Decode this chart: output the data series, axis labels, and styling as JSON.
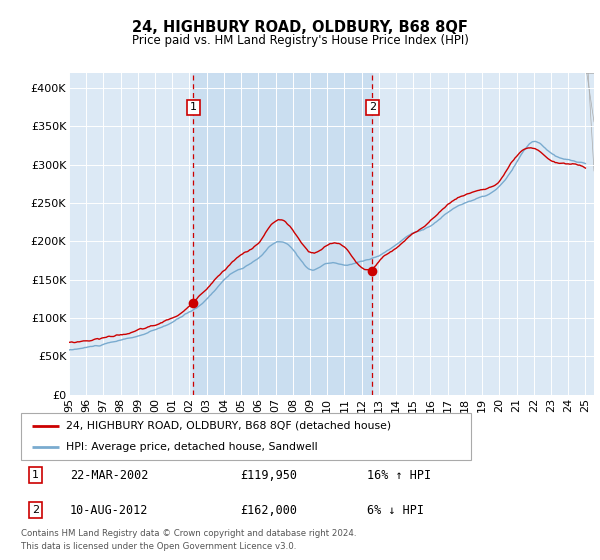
{
  "title": "24, HIGHBURY ROAD, OLDBURY, B68 8QF",
  "subtitle": "Price paid vs. HM Land Registry's House Price Index (HPI)",
  "background_color": "#ffffff",
  "plot_bg_color": "#dce9f5",
  "shade_color": "#c8ddf0",
  "ylim": [
    0,
    420000
  ],
  "yticks": [
    0,
    50000,
    100000,
    150000,
    200000,
    250000,
    300000,
    350000,
    400000
  ],
  "ytick_labels": [
    "£0",
    "£50K",
    "£100K",
    "£150K",
    "£200K",
    "£250K",
    "£300K",
    "£350K",
    "£400K"
  ],
  "sale1_year": 2002.22,
  "sale1_price": 119950,
  "sale2_year": 2012.62,
  "sale2_price": 162000,
  "legend_line1": "24, HIGHBURY ROAD, OLDBURY, B68 8QF (detached house)",
  "legend_line2": "HPI: Average price, detached house, Sandwell",
  "footer1": "Contains HM Land Registry data © Crown copyright and database right 2024.",
  "footer2": "This data is licensed under the Open Government Licence v3.0.",
  "red_color": "#cc0000",
  "blue_color": "#7aabcf",
  "xtick_labels": [
    "95",
    "96",
    "97",
    "98",
    "99",
    "00",
    "01",
    "02",
    "03",
    "04",
    "05",
    "06",
    "07",
    "08",
    "09",
    "10",
    "11",
    "12",
    "13",
    "14",
    "15",
    "16",
    "17",
    "18",
    "19",
    "20",
    "21",
    "22",
    "23",
    "24",
    "25"
  ],
  "xtick_years": [
    1995,
    1996,
    1997,
    1998,
    1999,
    2000,
    2001,
    2002,
    2003,
    2004,
    2005,
    2006,
    2007,
    2008,
    2009,
    2010,
    2011,
    2012,
    2013,
    2014,
    2015,
    2016,
    2017,
    2018,
    2019,
    2020,
    2021,
    2022,
    2023,
    2024,
    2025
  ]
}
